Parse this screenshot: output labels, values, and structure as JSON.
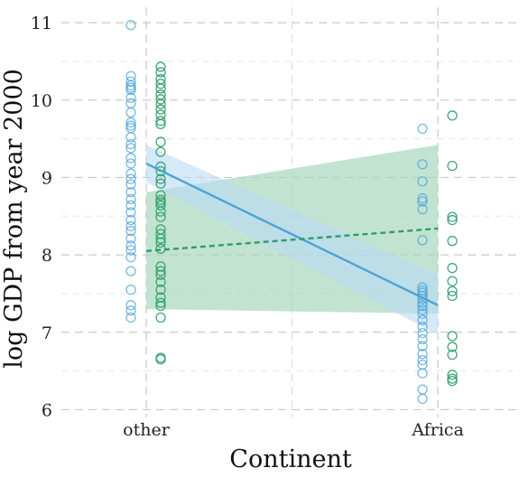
{
  "chart_data": {
    "type": "scatter",
    "title": "",
    "xlabel": "Continent",
    "ylabel": "log GDP from year 2000",
    "categories": [
      "other",
      "Africa"
    ],
    "ylim": [
      5.9,
      11.2
    ],
    "yticks": [
      6,
      7,
      8,
      9,
      10,
      11
    ],
    "grid": true,
    "legend": "none",
    "colors": {
      "blue": "#4aa3d8",
      "green": "#2e9e6b",
      "blue_band": "#b9daf3",
      "green_band": "#a8d7bd"
    },
    "series": [
      {
        "color": "blue",
        "points": {
          "other": [
            10.97,
            10.31,
            10.24,
            10.19,
            10.16,
            10.13,
            10.03,
            9.96,
            9.84,
            9.71,
            9.67,
            9.64,
            9.52,
            9.43,
            9.38,
            9.25,
            9.18,
            9.05,
            8.98,
            8.91,
            8.81,
            8.72,
            8.64,
            8.55,
            8.45,
            8.37,
            8.31,
            8.21,
            8.12,
            8.06,
            7.97,
            7.79,
            7.55,
            7.35,
            7.28,
            7.19
          ],
          "Africa": [
            9.63,
            9.17,
            8.95,
            8.73,
            8.69,
            8.59,
            8.19,
            7.58,
            7.54,
            7.51,
            7.47,
            7.43,
            7.38,
            7.34,
            7.29,
            7.24,
            7.16,
            7.07,
            6.99,
            6.91,
            6.82,
            6.72,
            6.64,
            6.58,
            6.47,
            6.26,
            6.14
          ]
        },
        "fit": {
          "line_style": "solid",
          "y": {
            "other": 9.18,
            "Africa": 7.35
          },
          "ci_lower": {
            "other": 8.94,
            "Africa": 6.97
          },
          "ci_upper": {
            "other": 9.42,
            "Africa": 7.74
          }
        }
      },
      {
        "color": "green",
        "points": {
          "other": [
            10.43,
            10.36,
            10.27,
            10.21,
            10.15,
            10.07,
            10.01,
            9.95,
            9.88,
            9.81,
            9.73,
            9.69,
            9.46,
            9.33,
            9.14,
            9.08,
            8.98,
            8.92,
            8.77,
            8.71,
            8.68,
            8.64,
            8.56,
            8.49,
            8.33,
            8.27,
            8.21,
            8.16,
            8.08,
            7.85,
            7.79,
            7.74,
            7.65,
            7.55,
            7.45,
            7.38,
            7.34,
            7.19,
            6.67,
            6.65
          ],
          "Africa": [
            9.8,
            9.15,
            8.49,
            8.45,
            8.18,
            7.83,
            7.66,
            7.53,
            7.47,
            6.95,
            6.81,
            6.71,
            6.45,
            6.4,
            6.37
          ]
        },
        "fit": {
          "line_style": "dashed",
          "y": {
            "other": 8.05,
            "Africa": 8.34
          },
          "ci_lower": {
            "other": 7.3,
            "Africa": 7.24
          },
          "ci_upper": {
            "other": 8.81,
            "Africa": 9.42
          }
        }
      }
    ]
  }
}
